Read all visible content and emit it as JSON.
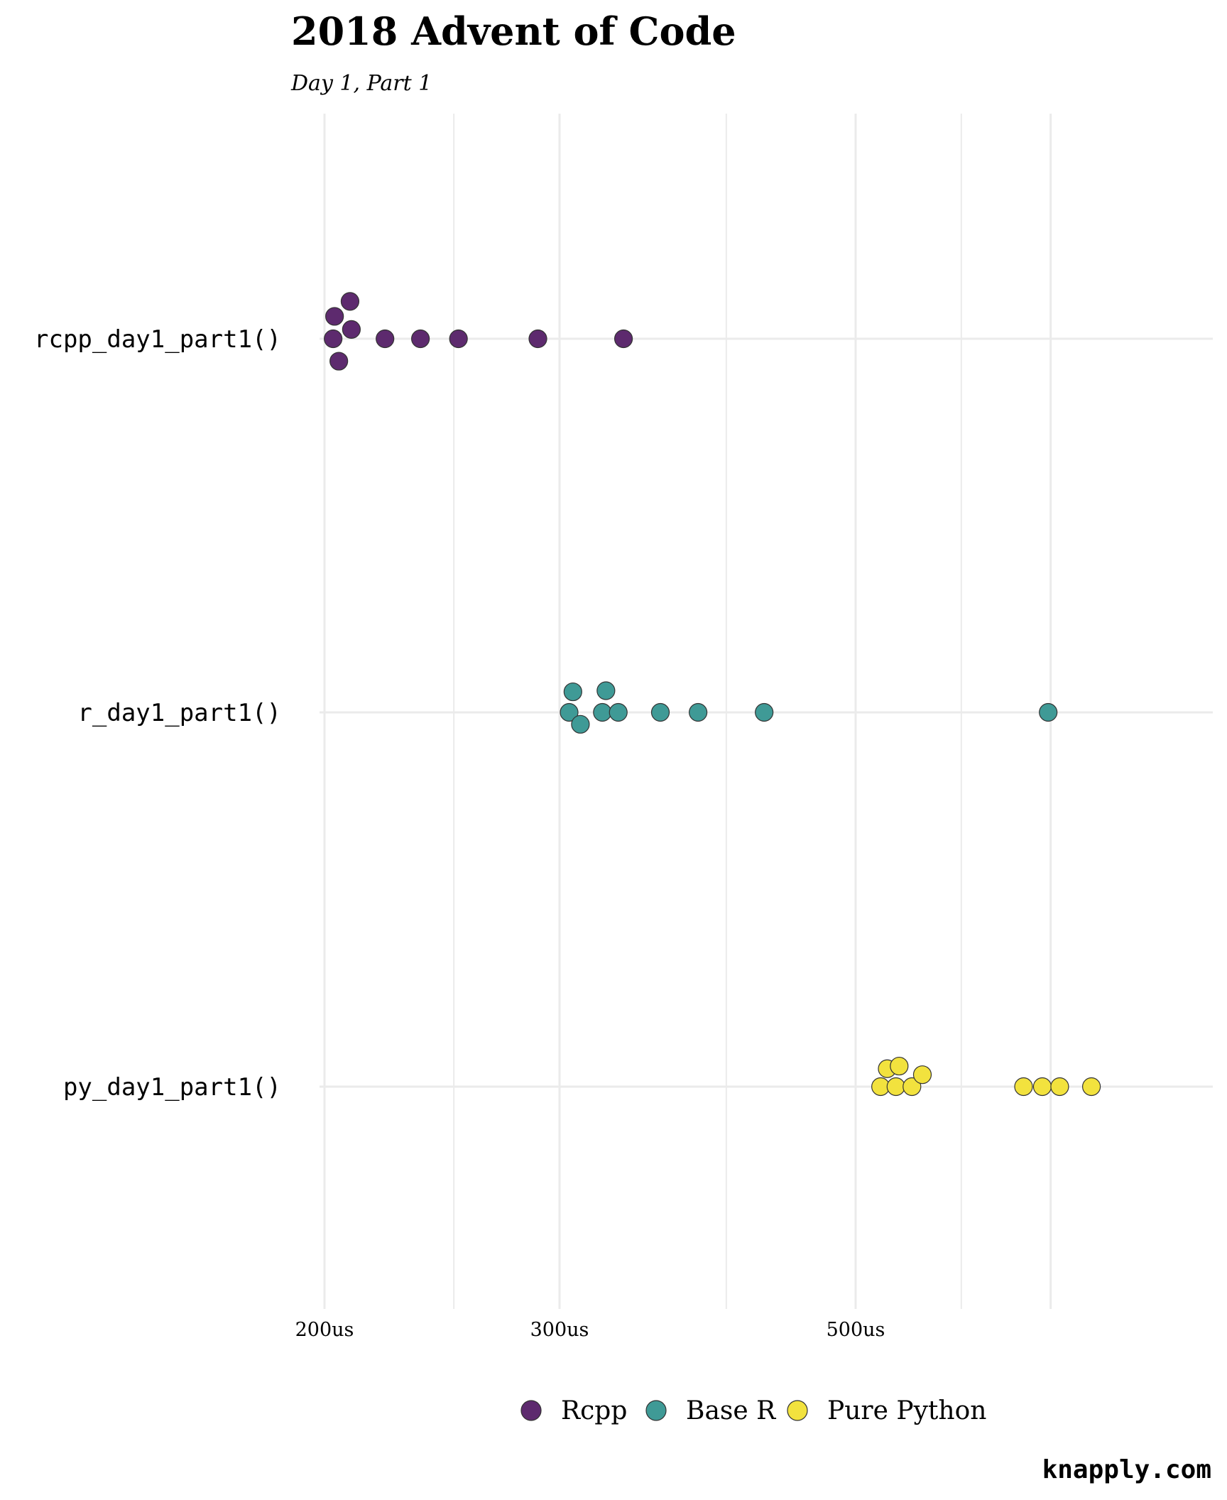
{
  "chart_data": {
    "type": "scatter",
    "title": "2018 Advent of Code",
    "subtitle": "Day 1, Part 1",
    "caption": "knapply.com",
    "xlabel": "",
    "ylabel": "",
    "x_scale": "log",
    "xlim": [
      198,
      760
    ],
    "x_major_ticks": [
      200,
      300,
      500
    ],
    "x_tick_labels": [
      "200us",
      "300us",
      "500us"
    ],
    "x_minor_gridlines": [
      250,
      400,
      600
    ],
    "x_extra_gridlines": [
      700
    ],
    "categories": [
      "rcpp_day1_part1()",
      "r_day1_part1()",
      "py_day1_part1()"
    ],
    "legend_position": "bottom",
    "grid": true,
    "series": [
      {
        "name": "Rcpp",
        "category": "rcpp_day1_part1()",
        "color": "#5D2A6E",
        "points": [
          {
            "x": 203,
            "offset": 0
          },
          {
            "x": 203.5,
            "offset": 0.06
          },
          {
            "x": 205,
            "offset": -0.06
          },
          {
            "x": 209,
            "offset": 0.1
          },
          {
            "x": 209.5,
            "offset": 0.025
          },
          {
            "x": 222,
            "offset": 0
          },
          {
            "x": 236,
            "offset": 0
          },
          {
            "x": 252,
            "offset": 0
          },
          {
            "x": 289,
            "offset": 0
          },
          {
            "x": 335,
            "offset": 0
          }
        ]
      },
      {
        "name": "Base R",
        "category": "r_day1_part1()",
        "color": "#3F9A96",
        "points": [
          {
            "x": 305,
            "offset": 0
          },
          {
            "x": 307,
            "offset": 0.055
          },
          {
            "x": 311,
            "offset": -0.032
          },
          {
            "x": 323,
            "offset": 0
          },
          {
            "x": 325,
            "offset": 0.058
          },
          {
            "x": 332,
            "offset": 0
          },
          {
            "x": 357,
            "offset": 0
          },
          {
            "x": 381,
            "offset": 0
          },
          {
            "x": 427,
            "offset": 0
          },
          {
            "x": 697,
            "offset": 0
          }
        ]
      },
      {
        "name": "Pure Python",
        "category": "py_day1_part1()",
        "color": "#F2E23E",
        "points": [
          {
            "x": 522,
            "offset": 0
          },
          {
            "x": 528,
            "offset": 0.048
          },
          {
            "x": 536,
            "offset": 0
          },
          {
            "x": 539,
            "offset": 0.055
          },
          {
            "x": 551,
            "offset": 0
          },
          {
            "x": 561,
            "offset": 0.032
          },
          {
            "x": 668,
            "offset": 0
          },
          {
            "x": 690,
            "offset": 0
          },
          {
            "x": 711,
            "offset": 0
          },
          {
            "x": 751,
            "offset": 0
          }
        ]
      }
    ]
  }
}
